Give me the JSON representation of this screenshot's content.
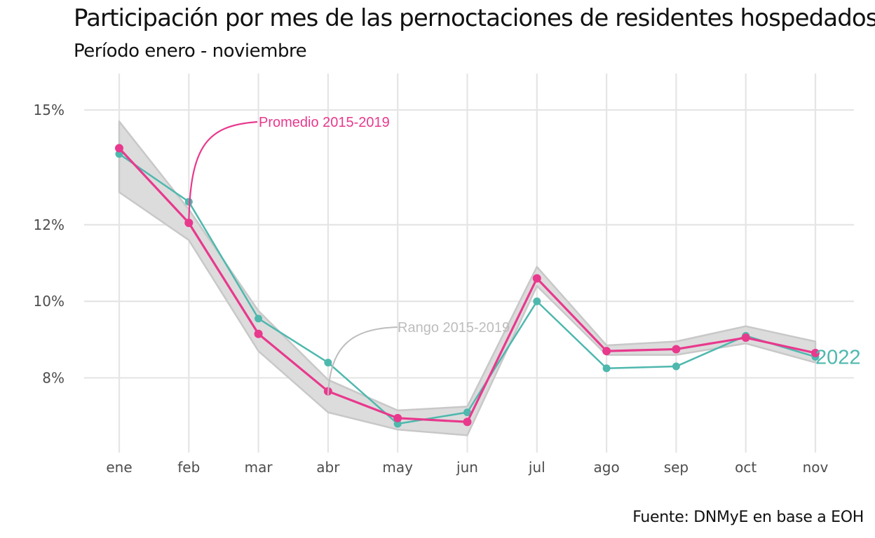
{
  "title": "Participación por mes de las pernoctaciones de residentes hospedados",
  "subtitle": "Período enero - noviembre",
  "caption": "Fuente: DNMyE en base a EOH",
  "colors": {
    "promedio": "#e8398d",
    "serie_2022": "#4fb8ae",
    "rango_fill": "#dcdcdc",
    "rango_line": "#c8c8c8",
    "grid": "#e5e5e5",
    "annot_rango": "#bdbdbd"
  },
  "chart_data": {
    "type": "line",
    "categories": [
      "ene",
      "feb",
      "mar",
      "abr",
      "may",
      "jun",
      "jul",
      "ago",
      "sep",
      "oct",
      "nov"
    ],
    "ylim": [
      6.05,
      15.95
    ],
    "yticks": [
      8,
      10,
      12,
      15
    ],
    "ytick_labels": [
      "8%",
      "10%",
      "12%",
      "15%"
    ],
    "grid": true,
    "series": [
      {
        "name": "Promedio 2015-2019",
        "values": [
          14.0,
          12.05,
          9.15,
          7.65,
          6.95,
          6.85,
          10.6,
          8.7,
          8.75,
          9.05,
          8.65
        ]
      },
      {
        "name": "2022",
        "values": [
          13.85,
          12.6,
          9.55,
          8.4,
          6.8,
          7.1,
          10.0,
          8.25,
          8.3,
          9.1,
          8.55
        ]
      }
    ],
    "range": {
      "name": "Rango 2015-2019",
      "min": [
        12.85,
        11.6,
        8.7,
        7.1,
        6.65,
        6.5,
        10.4,
        8.6,
        8.6,
        8.9,
        8.4
      ],
      "max": [
        14.7,
        12.4,
        9.75,
        7.95,
        7.15,
        7.25,
        10.9,
        8.85,
        8.95,
        9.35,
        8.95
      ]
    },
    "annotations": [
      {
        "text": "Promedio 2015-2019",
        "category": "feb",
        "series": "Promedio 2015-2019"
      },
      {
        "text": "Rango 2015-2019",
        "category": "abr",
        "series": "Rango 2015-2019"
      },
      {
        "text": "2022",
        "category": "nov",
        "series": "2022"
      }
    ]
  }
}
